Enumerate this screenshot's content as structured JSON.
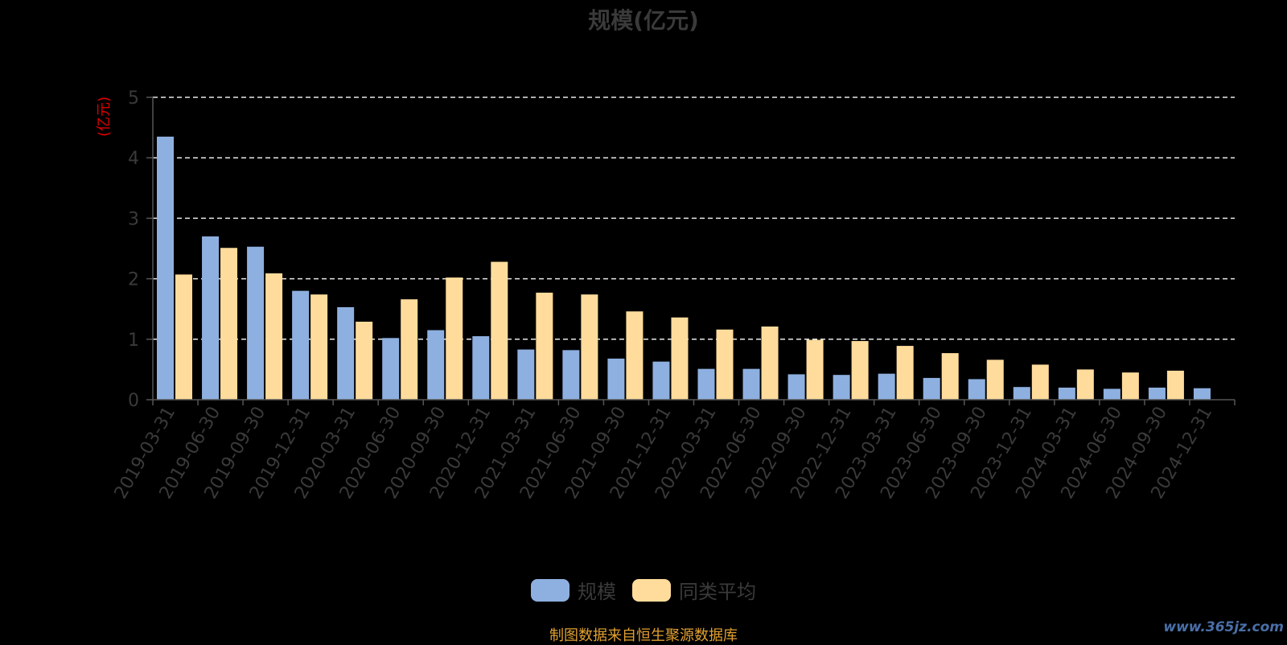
{
  "chart_data": {
    "type": "bar",
    "title": "规模(亿元)",
    "ylabel": "(亿元)",
    "xlabel": "",
    "ylim": [
      0,
      5
    ],
    "yticks": [
      0,
      1,
      2,
      3,
      4,
      5
    ],
    "grid": true,
    "legend_position": "bottom-center",
    "categories": [
      "2019-03-31",
      "2019-06-30",
      "2019-09-30",
      "2019-12-31",
      "2020-03-31",
      "2020-06-30",
      "2020-09-30",
      "2020-12-31",
      "2021-03-31",
      "2021-06-30",
      "2021-09-30",
      "2021-12-31",
      "2022-03-31",
      "2022-06-30",
      "2022-09-30",
      "2022-12-31",
      "2023-03-31",
      "2023-06-30",
      "2023-09-30",
      "2023-12-31",
      "2024-03-31",
      "2024-06-30",
      "2024-09-30",
      "2024-12-31"
    ],
    "series": [
      {
        "name": "规模",
        "color": "#8eb0e0",
        "values": [
          4.35,
          2.7,
          2.53,
          1.8,
          1.53,
          1.02,
          1.15,
          1.05,
          0.83,
          0.82,
          0.68,
          0.63,
          0.51,
          0.51,
          0.42,
          0.41,
          0.43,
          0.36,
          0.34,
          0.21,
          0.2,
          0.18,
          0.2,
          0.19
        ]
      },
      {
        "name": "同类平均",
        "color": "#ffdc9c",
        "values": [
          2.07,
          2.51,
          2.09,
          1.74,
          1.29,
          1.66,
          2.02,
          2.28,
          1.77,
          1.74,
          1.46,
          1.36,
          1.16,
          1.21,
          0.99,
          0.97,
          0.89,
          0.77,
          0.66,
          0.58,
          0.5,
          0.45,
          0.48,
          null
        ]
      }
    ]
  },
  "source_note": "制图数据来自恒生聚源数据库",
  "watermark": "www.365jz.com",
  "colors": {
    "axis": "#555555",
    "grid": "#e8e8e8",
    "tick_text": "#3a3a3a",
    "unit_label": "#e00000"
  }
}
